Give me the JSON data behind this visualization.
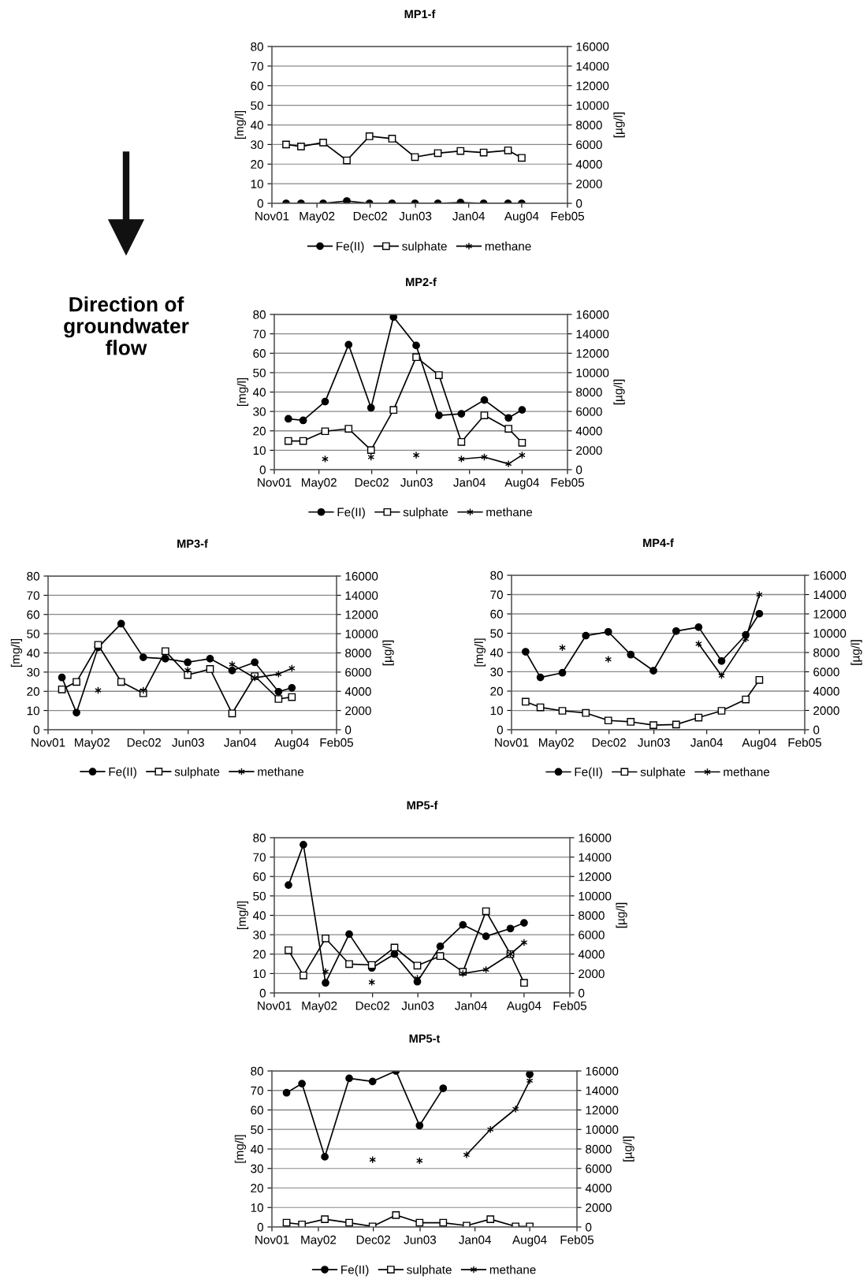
{
  "chart_data": [
    {
      "type": "line",
      "title": "MP1-f",
      "ylabel": "[mg/l]",
      "y2label": "[µg/l]",
      "annotations": [
        "Direction of\ngroundwater\nflow"
      ],
      "x": [
        "2001-12-28",
        "2002-02-26",
        "2002-05-26",
        "2002-08-29",
        "2002-11-28",
        "2003-02-27",
        "2003-05-30",
        "2003-08-30",
        "2003-11-29",
        "2004-03-01",
        "2004-06-07",
        "2004-08-01"
      ],
      "xlim": [
        "2001-11-01",
        "2005-02-01"
      ],
      "xticks": [
        {
          "value": "2001-11-01",
          "label": "Nov01"
        },
        {
          "value": "2002-05-01",
          "label": "May02"
        },
        {
          "value": "2002-12-01",
          "label": "Dec02"
        },
        {
          "value": "2003-06-01",
          "label": "Jun03"
        },
        {
          "value": "2004-01-01",
          "label": "Jan04"
        },
        {
          "value": "2004-08-01",
          "label": "Aug04"
        },
        {
          "value": "2005-02-01",
          "label": "Feb05"
        }
      ],
      "ylim": [
        0,
        80
      ],
      "yticks": [
        0,
        10,
        20,
        30,
        40,
        50,
        60,
        70,
        80
      ],
      "y2lim": [
        0,
        16000
      ],
      "y2ticks": [
        0,
        2000,
        4000,
        6000,
        8000,
        10000,
        12000,
        14000,
        16000
      ],
      "grid": "y",
      "legend": "bottom",
      "series": [
        {
          "name": "Fe(II)",
          "color": "#000000",
          "marker": "circle",
          "values": [
            0,
            0,
            0,
            1.2,
            0,
            0,
            0,
            0,
            0.4,
            0,
            0,
            0
          ]
        },
        {
          "name": "sulphate",
          "color": "#000000",
          "marker": "square",
          "values": [
            30.0,
            29.0,
            31.0,
            21.9,
            34.2,
            33.0,
            23.6,
            25.6,
            26.7,
            25.9,
            27.0,
            23.2
          ]
        },
        {
          "name": "methane",
          "color": "#000000",
          "marker": "cross",
          "axis": "y2",
          "values": [
            null,
            null,
            null,
            null,
            null,
            null,
            null,
            null,
            null,
            null,
            null,
            null
          ]
        }
      ]
    },
    {
      "type": "line",
      "title": "MP2-f",
      "ylabel": "[mg/l]",
      "y2label": "[µg/l]",
      "x": [
        "2001-12-28",
        "2002-02-26",
        "2002-05-26",
        "2002-08-29",
        "2002-11-28",
        "2003-02-27",
        "2003-05-30",
        "2003-08-30",
        "2003-11-29",
        "2004-03-01",
        "2004-06-07",
        "2004-08-01"
      ],
      "xlim": [
        "2001-11-01",
        "2005-02-01"
      ],
      "xticks": [
        {
          "value": "2001-11-01",
          "label": "Nov01"
        },
        {
          "value": "2002-05-01",
          "label": "May02"
        },
        {
          "value": "2002-12-01",
          "label": "Dec02"
        },
        {
          "value": "2003-06-01",
          "label": "Jun03"
        },
        {
          "value": "2004-01-01",
          "label": "Jan04"
        },
        {
          "value": "2004-08-01",
          "label": "Aug04"
        },
        {
          "value": "2005-02-01",
          "label": "Feb05"
        }
      ],
      "ylim": [
        0,
        80
      ],
      "yticks": [
        0,
        10,
        20,
        30,
        40,
        50,
        60,
        70,
        80
      ],
      "y2lim": [
        0,
        16000
      ],
      "y2ticks": [
        0,
        2000,
        4000,
        6000,
        8000,
        10000,
        12000,
        14000,
        16000
      ],
      "grid": "y",
      "legend": "bottom",
      "series": [
        {
          "name": "Fe(II)",
          "color": "#000000",
          "marker": "circle",
          "values": [
            26.2,
            25.4,
            35.1,
            64.4,
            31.9,
            78.7,
            64.0,
            28.0,
            28.8,
            35.9,
            26.7,
            30.8
          ]
        },
        {
          "name": "sulphate",
          "color": "#000000",
          "marker": "square",
          "values": [
            14.8,
            14.8,
            19.8,
            21.1,
            10.1,
            30.8,
            58.0,
            48.7,
            14.3,
            28.0,
            21.1,
            13.9
          ]
        },
        {
          "name": "methane",
          "color": "#000000",
          "marker": "cross",
          "axis": "y2",
          "values": [
            null,
            null,
            1100,
            null,
            1300,
            null,
            1500,
            null,
            1100,
            1300,
            600,
            1500
          ]
        }
      ]
    },
    {
      "type": "line",
      "title": "MP3-f",
      "ylabel": "[mg/l]",
      "y2label": "[µg/l]",
      "x": [
        "2001-12-28",
        "2002-02-26",
        "2002-05-26",
        "2002-08-29",
        "2002-11-28",
        "2003-02-27",
        "2003-05-30",
        "2003-08-30",
        "2003-11-29",
        "2004-03-01",
        "2004-06-07",
        "2004-08-01"
      ],
      "xlim": [
        "2001-11-01",
        "2005-02-01"
      ],
      "xticks": [
        {
          "value": "2001-11-01",
          "label": "Nov01"
        },
        {
          "value": "2002-05-01",
          "label": "May02"
        },
        {
          "value": "2002-12-01",
          "label": "Dec02"
        },
        {
          "value": "2003-06-01",
          "label": "Jun03"
        },
        {
          "value": "2004-01-01",
          "label": "Jan04"
        },
        {
          "value": "2004-08-01",
          "label": "Aug04"
        },
        {
          "value": "2005-02-01",
          "label": "Feb05"
        }
      ],
      "ylim": [
        0,
        80
      ],
      "yticks": [
        0,
        10,
        20,
        30,
        40,
        50,
        60,
        70,
        80
      ],
      "y2lim": [
        0,
        16000
      ],
      "y2ticks": [
        0,
        2000,
        4000,
        6000,
        8000,
        10000,
        12000,
        14000,
        16000
      ],
      "grid": "y",
      "legend": "bottom",
      "series": [
        {
          "name": "Fe(II)",
          "color": "#000000",
          "marker": "circle",
          "values": [
            27.2,
            8.9,
            42.8,
            55.2,
            37.7,
            37.0,
            35.1,
            37.0,
            30.8,
            35.1,
            19.8,
            21.8
          ]
        },
        {
          "name": "sulphate",
          "color": "#000000",
          "marker": "square",
          "values": [
            21.0,
            24.9,
            44.2,
            24.9,
            19.0,
            40.9,
            28.5,
            31.6,
            8.5,
            27.9,
            16.0,
            17.0
          ]
        },
        {
          "name": "methane",
          "color": "#000000",
          "marker": "cross",
          "axis": "y2",
          "values": [
            null,
            null,
            4100,
            null,
            4100,
            null,
            6200,
            null,
            6800,
            5400,
            5800,
            6400
          ]
        }
      ]
    },
    {
      "type": "line",
      "title": "MP4-f",
      "ylabel": "[mg/l]",
      "y2label": "[µg/l]",
      "x": [
        "2001-12-28",
        "2002-02-26",
        "2002-05-26",
        "2002-08-29",
        "2002-11-28",
        "2003-02-27",
        "2003-05-30",
        "2003-08-30",
        "2003-11-29",
        "2004-03-01",
        "2004-06-07",
        "2004-08-01"
      ],
      "xlim": [
        "2001-11-01",
        "2005-02-01"
      ],
      "xticks": [
        {
          "value": "2001-11-01",
          "label": "Nov01"
        },
        {
          "value": "2002-05-01",
          "label": "May02"
        },
        {
          "value": "2002-12-01",
          "label": "Dec02"
        },
        {
          "value": "2003-06-01",
          "label": "Jun03"
        },
        {
          "value": "2004-01-01",
          "label": "Jan04"
        },
        {
          "value": "2004-08-01",
          "label": "Aug04"
        },
        {
          "value": "2005-02-01",
          "label": "Feb05"
        }
      ],
      "ylim": [
        0,
        80
      ],
      "yticks": [
        0,
        10,
        20,
        30,
        40,
        50,
        60,
        70,
        80
      ],
      "y2lim": [
        0,
        16000
      ],
      "y2ticks": [
        0,
        2000,
        4000,
        6000,
        8000,
        10000,
        12000,
        14000,
        16000
      ],
      "grid": "y",
      "legend": "bottom",
      "series": [
        {
          "name": "Fe(II)",
          "color": "#000000",
          "marker": "circle",
          "values": [
            40.4,
            27.1,
            29.5,
            48.7,
            50.7,
            38.9,
            30.6,
            51.1,
            53.1,
            35.6,
            49.1,
            60.1
          ]
        },
        {
          "name": "sulphate",
          "color": "#000000",
          "marker": "square",
          "values": [
            14.5,
            11.6,
            9.8,
            8.7,
            4.8,
            4.1,
            2.4,
            2.7,
            6.3,
            9.8,
            15.7,
            25.8
          ]
        },
        {
          "name": "methane",
          "color": "#000000",
          "marker": "cross",
          "axis": "y2",
          "values": [
            null,
            null,
            8500,
            null,
            7300,
            null,
            6100,
            null,
            8900,
            5600,
            9400,
            14000
          ]
        }
      ]
    },
    {
      "type": "line",
      "title": "MP5-f",
      "ylabel": "[mg/l]",
      "y2label": "[µg/l]",
      "x": [
        "2001-12-28",
        "2002-02-26",
        "2002-05-26",
        "2002-08-29",
        "2002-11-28",
        "2003-02-27",
        "2003-05-30",
        "2003-08-30",
        "2003-11-29",
        "2004-03-01",
        "2004-06-07",
        "2004-08-01"
      ],
      "xlim": [
        "2001-11-01",
        "2005-02-01"
      ],
      "xticks": [
        {
          "value": "2001-11-01",
          "label": "Nov01"
        },
        {
          "value": "2002-05-01",
          "label": "May02"
        },
        {
          "value": "2002-12-01",
          "label": "Dec02"
        },
        {
          "value": "2003-06-01",
          "label": "Jun03"
        },
        {
          "value": "2004-01-01",
          "label": "Jan04"
        },
        {
          "value": "2004-08-01",
          "label": "Aug04"
        },
        {
          "value": "2005-02-01",
          "label": "Feb05"
        }
      ],
      "ylim": [
        0,
        80
      ],
      "yticks": [
        0,
        10,
        20,
        30,
        40,
        50,
        60,
        70,
        80
      ],
      "y2lim": [
        0,
        16000
      ],
      "y2ticks": [
        0,
        2000,
        4000,
        6000,
        8000,
        10000,
        12000,
        14000,
        16000
      ],
      "grid": "y",
      "series": [
        {
          "color": "#000000",
          "marker": "circle",
          "values": [
            55.6,
            76.4,
            5.2,
            30.3,
            12.9,
            20.0,
            5.8,
            24.0,
            35.1,
            29.2,
            33.2,
            36.1
          ]
        },
        {
          "color": "#000000",
          "marker": "square",
          "values": [
            22.0,
            9.0,
            28.1,
            14.9,
            14.4,
            23.4,
            14.1,
            19.0,
            10.9,
            42.1,
            20.0,
            5.2
          ]
        },
        {
          "color": "#000000",
          "marker": "cross",
          "axis": "y2",
          "values": [
            null,
            null,
            2200,
            null,
            1100,
            null,
            1500,
            null,
            2000,
            2400,
            4000,
            5200
          ]
        }
      ]
    },
    {
      "type": "line",
      "title": "MP5-t",
      "ylabel": "[mg/l]",
      "y2label": "[µg/l]",
      "x": [
        "2001-12-28",
        "2002-02-26",
        "2002-05-26",
        "2002-08-29",
        "2002-11-28",
        "2003-02-27",
        "2003-05-30",
        "2003-08-30",
        "2003-11-29",
        "2004-03-01",
        "2004-06-07",
        "2004-08-01"
      ],
      "xlim": [
        "2001-11-01",
        "2005-02-01"
      ],
      "xticks": [
        {
          "value": "2001-11-01",
          "label": "Nov01"
        },
        {
          "value": "2002-05-01",
          "label": "May02"
        },
        {
          "value": "2002-12-01",
          "label": "Dec02"
        },
        {
          "value": "2003-06-01",
          "label": "Jun03"
        },
        {
          "value": "2004-01-01",
          "label": "Jan04"
        },
        {
          "value": "2004-08-01",
          "label": "Aug04"
        },
        {
          "value": "2005-02-01",
          "label": "Feb05"
        }
      ],
      "ylim": [
        0,
        80
      ],
      "yticks": [
        0,
        10,
        20,
        30,
        40,
        50,
        60,
        70,
        80
      ],
      "y2lim": [
        0,
        16000
      ],
      "y2ticks": [
        0,
        2000,
        4000,
        6000,
        8000,
        10000,
        12000,
        14000,
        16000
      ],
      "grid": "y",
      "legend": "bottom",
      "series": [
        {
          "name": "Fe(II)",
          "color": "#000000",
          "marker": "circle",
          "values": [
            68.8,
            73.5,
            36.0,
            76.2,
            74.6,
            80.0,
            52.0,
            71.1,
            null,
            null,
            null,
            78.3
          ]
        },
        {
          "name": "sulphate",
          "color": "#000000",
          "marker": "square",
          "values": [
            2.2,
            1.3,
            4.0,
            2.2,
            0.3,
            6.1,
            2.2,
            2.2,
            0.7,
            4.0,
            0.3,
            0.3
          ]
        },
        {
          "name": "methane",
          "color": "#000000",
          "marker": "cross",
          "axis": "y2",
          "values": [
            null,
            null,
            7200,
            null,
            6900,
            null,
            6800,
            null,
            7400,
            10000,
            12100,
            15000
          ]
        }
      ]
    }
  ]
}
